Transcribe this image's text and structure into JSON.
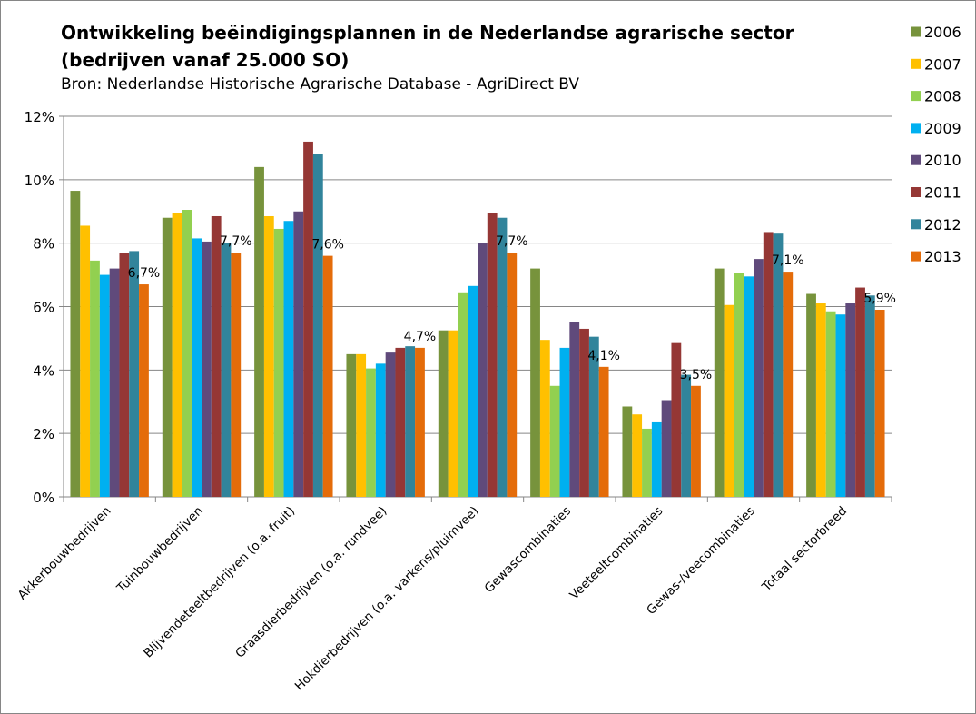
{
  "chart_data": {
    "type": "bar",
    "title": "Ontwikkeling beëindigingsplannen in de Nederlandse agrarische sector (bedrijven vanaf 25.000 SO)",
    "subtitle": "Bron: Nederlandse Historische Agrarische Database - AgriDirect BV",
    "xlabel": "",
    "ylabel": "",
    "ylim": [
      0,
      12
    ],
    "yticks": [
      "0%",
      "2%",
      "4%",
      "6%",
      "8%",
      "10%",
      "12%"
    ],
    "grid": true,
    "legend_position": "right",
    "categories": [
      "Akkerbouwbedrijven",
      "Tuinbouwbedrijven",
      "Blijvendeteeltbedrijven (o.a. fruit)",
      "Graasdierbedrijven (o.a. rundvee)",
      "Hokdierbedrijven (o.a. varkens/pluimvee)",
      "Gewascombinaties",
      "Veeteeltcombinaties",
      "Gewas-/veecombinaties",
      "Totaal sectorbreed"
    ],
    "series": [
      {
        "name": "2006",
        "color": "#77933c",
        "values": [
          9.65,
          8.8,
          10.4,
          4.5,
          5.25,
          7.2,
          2.85,
          7.2,
          6.4
        ]
      },
      {
        "name": "2007",
        "color": "#ffc000",
        "values": [
          8.55,
          8.95,
          8.85,
          4.5,
          5.25,
          4.95,
          2.6,
          6.05,
          6.1
        ]
      },
      {
        "name": "2008",
        "color": "#92d050",
        "values": [
          7.45,
          9.05,
          8.45,
          4.05,
          6.45,
          3.5,
          2.15,
          7.05,
          5.85
        ]
      },
      {
        "name": "2009",
        "color": "#00b0f0",
        "values": [
          7.0,
          8.15,
          8.7,
          4.2,
          6.65,
          4.7,
          2.35,
          6.95,
          5.75
        ]
      },
      {
        "name": "2010",
        "color": "#604a7b",
        "values": [
          7.2,
          8.05,
          9.0,
          4.55,
          8.0,
          5.5,
          3.05,
          7.5,
          6.1
        ]
      },
      {
        "name": "2011",
        "color": "#953735",
        "values": [
          7.7,
          8.85,
          11.2,
          4.7,
          8.95,
          5.3,
          4.85,
          8.35,
          6.6
        ]
      },
      {
        "name": "2012",
        "color": "#31849b",
        "values": [
          7.75,
          8.0,
          10.8,
          4.75,
          8.8,
          5.05,
          3.85,
          8.3,
          6.35
        ]
      },
      {
        "name": "2013",
        "color": "#e46c0a",
        "values": [
          6.7,
          7.7,
          7.6,
          4.7,
          7.7,
          4.1,
          3.5,
          7.1,
          5.9
        ]
      }
    ],
    "data_labels": [
      "6,7%",
      "7,7%",
      "7,6%",
      "4,7%",
      "7,7%",
      "4,1%",
      "3,5%",
      "7,1%",
      "5,9%"
    ]
  }
}
